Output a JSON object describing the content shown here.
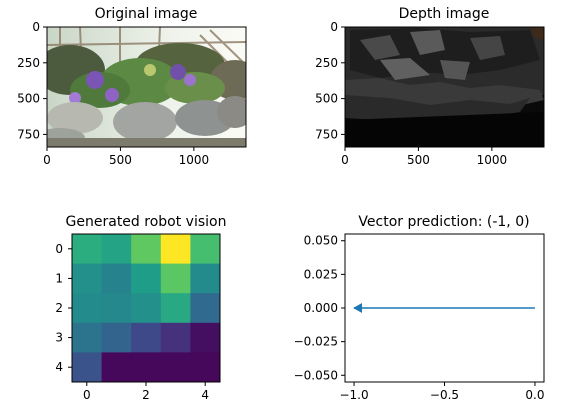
{
  "chart_data": [
    {
      "type": "image",
      "title": "Original image",
      "xticks": [
        "0",
        "500",
        "1000"
      ],
      "yticks": [
        "0",
        "250",
        "500",
        "750"
      ],
      "xlim": [
        0,
        1355
      ],
      "ylim": [
        838,
        0
      ],
      "description_colors": {
        "sky": "#e8efe9",
        "foliage": "#5f7f4a",
        "flowers": "#8a5fb8",
        "rocks": "#9aa0a0",
        "soil": "#6b6652"
      }
    },
    {
      "type": "image",
      "title": "Depth image",
      "xticks": [
        "0",
        "500",
        "1000"
      ],
      "yticks": [
        "0",
        "250",
        "500",
        "750"
      ],
      "xlim": [
        0,
        1355
      ],
      "ylim": [
        838,
        0
      ],
      "description_colors": {
        "far": "#1a1a1a",
        "mid": "#3a3a3a",
        "near": "#6a6a6a",
        "ground": "#0a0a0a"
      }
    },
    {
      "type": "heatmap",
      "title": "Generated robot vision",
      "xticks": [
        "0",
        "2",
        "4"
      ],
      "yticks": [
        "0",
        "1",
        "2",
        "3",
        "4"
      ],
      "colormap": "viridis",
      "values": [
        [
          0.62,
          0.58,
          0.75,
          1.0,
          0.7
        ],
        [
          0.5,
          0.45,
          0.55,
          0.74,
          0.48
        ],
        [
          0.48,
          0.47,
          0.5,
          0.6,
          0.34
        ],
        [
          0.38,
          0.32,
          0.22,
          0.14,
          0.04
        ],
        [
          0.26,
          0.02,
          0.02,
          0.02,
          0.02
        ]
      ]
    },
    {
      "type": "line",
      "title": "Vector prediction: (-1, 0)",
      "x": [
        -1.0,
        0.0
      ],
      "y": [
        0.0,
        0.0
      ],
      "xticks": [
        "−1.0",
        "−0.5",
        "0.0"
      ],
      "xtick_values": [
        -1.0,
        -0.5,
        0.0
      ],
      "yticks": [
        "0.050",
        "0.025",
        "0.000",
        "−0.025",
        "−0.050"
      ],
      "ytick_values": [
        0.05,
        0.025,
        0.0,
        -0.025,
        -0.05
      ],
      "xlim": [
        -1.05,
        0.05
      ],
      "ylim": [
        -0.055,
        0.055
      ],
      "line_color": "#1f77b4",
      "marker": "left-triangle"
    }
  ]
}
